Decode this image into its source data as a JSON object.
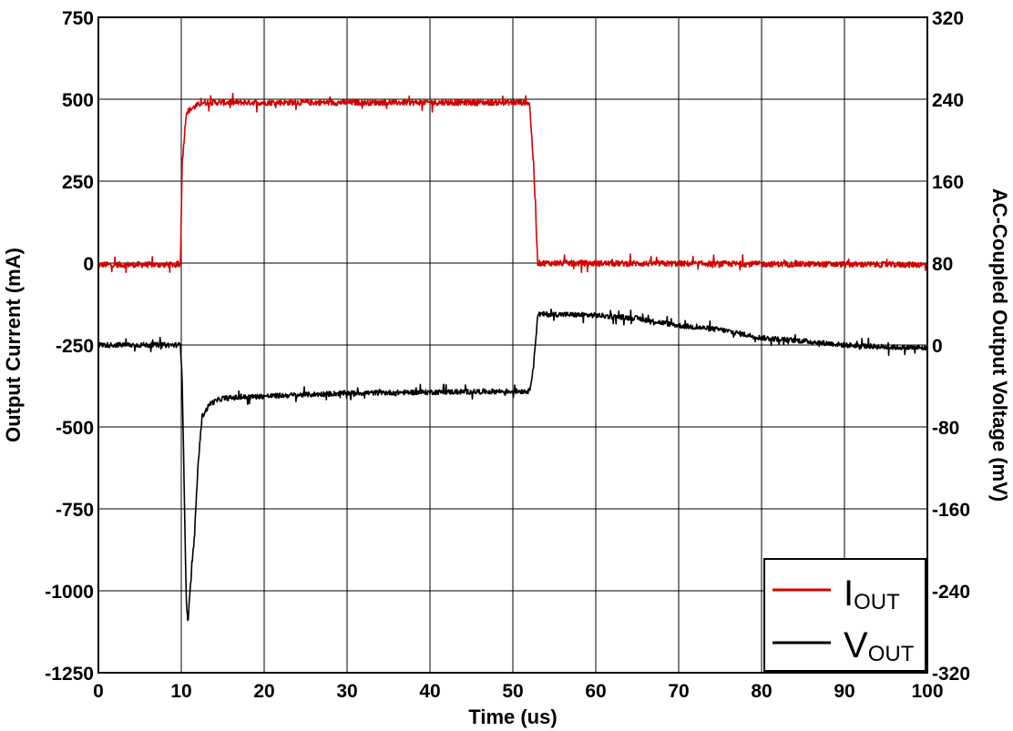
{
  "chart_data": {
    "type": "line",
    "xlabel": "Time (us)",
    "ylabel_left": "Output Current (mA)",
    "ylabel_right": "AC-Coupled Output Voltage (mV)",
    "xlim": [
      0,
      100
    ],
    "ylim_left": [
      -1250,
      750
    ],
    "ylim_right": [
      -320,
      320
    ],
    "x_ticks": [
      "0",
      "10",
      "20",
      "30",
      "40",
      "50",
      "60",
      "70",
      "80",
      "90",
      "100"
    ],
    "y_ticks_left": [
      "750",
      "500",
      "250",
      "0",
      "-250",
      "-500",
      "-750",
      "-1000",
      "-1250"
    ],
    "y_ticks_right": [
      "320",
      "240",
      "160",
      "80",
      "0",
      "-80",
      "-160",
      "-240",
      "-320"
    ],
    "grid": true,
    "legend_position": "bottom-right",
    "series": [
      {
        "name_main": "I",
        "name_sub": "OUT",
        "axis": "left",
        "color": "#d40000",
        "noise": 9,
        "x": [
          0,
          9.9,
          10.1,
          10.6,
          11.5,
          12.5,
          52.0,
          52.5,
          53.0,
          100
        ],
        "y": [
          -5,
          -5,
          300,
          460,
          475,
          490,
          490,
          300,
          0,
          -5
        ]
      },
      {
        "name_main": "V",
        "name_sub": "OUT",
        "axis": "right",
        "color": "#000000",
        "noise": 2.5,
        "x": [
          0,
          9.9,
          10.1,
          10.4,
          10.6,
          10.8,
          11.2,
          11.6,
          12.0,
          12.5,
          13.5,
          15,
          20,
          30,
          40,
          52.0,
          52.5,
          53.0,
          55,
          60,
          65,
          70,
          75,
          80,
          85,
          90,
          95,
          100
        ],
        "y": [
          0,
          0,
          -30,
          -160,
          -250,
          -270,
          -225,
          -185,
          -120,
          -70,
          -57,
          -52,
          -50,
          -47,
          -46,
          -45,
          -20,
          30,
          30,
          29,
          26,
          19,
          15,
          7,
          4,
          0,
          -2,
          -3
        ]
      }
    ]
  }
}
